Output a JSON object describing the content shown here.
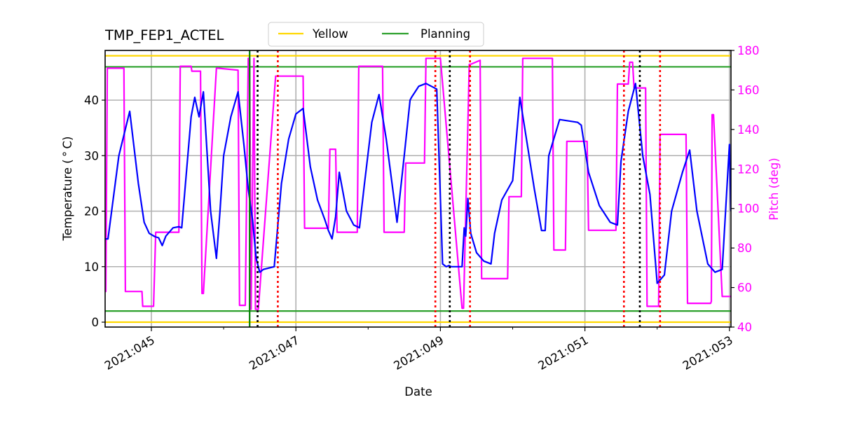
{
  "chart_data": {
    "type": "line",
    "title": "TMP_FEP1_ACTEL",
    "xlabel": "Date",
    "ylabel": "Temperature ($^\\circ$C)",
    "ylabel_display": "Temperature ( ° C)",
    "y2label": "Pitch (deg)",
    "xlim_day": [
      44.35,
      53.02
    ],
    "ylim": [
      -1,
      48.8
    ],
    "y2lim": [
      40,
      180
    ],
    "grid": true,
    "x_ticks": [
      {
        "day": 45,
        "label": "2021:045"
      },
      {
        "day": 47,
        "label": "2021:047"
      },
      {
        "day": 49,
        "label": "2021:049"
      },
      {
        "day": 51,
        "label": "2021:051"
      },
      {
        "day": 53,
        "label": "2021:053"
      }
    ],
    "x_minor_ticks_day": [
      46,
      48,
      50,
      52
    ],
    "y_ticks": [
      0,
      10,
      20,
      30,
      40
    ],
    "y2_ticks": [
      40,
      60,
      80,
      100,
      120,
      140,
      160,
      180
    ],
    "legend": {
      "position": "upper center, above axes",
      "entries": [
        {
          "label": "Yellow",
          "color": "#ffd700"
        },
        {
          "label": "Planning",
          "color": "#2ca02c"
        }
      ]
    },
    "limits": {
      "yellow": [
        0,
        48
      ],
      "planning": [
        2,
        46
      ]
    },
    "vlines": [
      {
        "day": 46.36,
        "color": "#008000",
        "style": "solid"
      },
      {
        "day": 46.47,
        "color": "#000000",
        "style": "dotted"
      },
      {
        "day": 46.75,
        "color": "#ff0000",
        "style": "dotted"
      },
      {
        "day": 48.93,
        "color": "#ff0000",
        "style": "dotted"
      },
      {
        "day": 49.13,
        "color": "#000000",
        "style": "dotted"
      },
      {
        "day": 49.41,
        "color": "#ff0000",
        "style": "dotted"
      },
      {
        "day": 51.54,
        "color": "#ff0000",
        "style": "dotted"
      },
      {
        "day": 51.76,
        "color": "#000000",
        "style": "dotted"
      },
      {
        "day": 52.04,
        "color": "#ff0000",
        "style": "dotted"
      }
    ],
    "series": [
      {
        "name": "Temperature",
        "axis": "left",
        "color": "#0000ff",
        "x": [
          44.35,
          44.4,
          44.55,
          44.7,
          44.82,
          44.9,
          44.97,
          45.05,
          45.1,
          45.15,
          45.2,
          45.3,
          45.38,
          45.42,
          45.55,
          45.6,
          45.66,
          45.72,
          45.82,
          45.9,
          45.95,
          46.0,
          46.1,
          46.2,
          46.28,
          46.34,
          46.4,
          46.45,
          46.5,
          46.55,
          46.7,
          46.8,
          46.9,
          47.0,
          47.1,
          47.2,
          47.3,
          47.4,
          47.45,
          47.5,
          47.55,
          47.6,
          47.7,
          47.8,
          47.88,
          47.95,
          48.05,
          48.15,
          48.25,
          48.35,
          48.4,
          48.5,
          48.58,
          48.6,
          48.7,
          48.8,
          48.95,
          49.03,
          49.08,
          49.12,
          49.15,
          49.3,
          49.33,
          49.35,
          49.38,
          49.42,
          49.5,
          49.6,
          49.7,
          49.75,
          49.85,
          50.0,
          50.1,
          50.3,
          50.4,
          50.45,
          50.5,
          50.65,
          50.9,
          50.95,
          51.05,
          51.2,
          51.35,
          51.45,
          51.5,
          51.6,
          51.7,
          51.8,
          51.9,
          52.0,
          52.1,
          52.2,
          52.35,
          52.45,
          52.55,
          52.7,
          52.8,
          52.9,
          53.0,
          53.02
        ],
        "y": [
          15,
          15,
          30,
          38,
          25,
          18,
          16,
          15.4,
          15.2,
          13.8,
          15.5,
          17,
          17.2,
          17,
          37,
          40.5,
          37,
          41.5,
          20,
          11.5,
          20,
          30,
          37,
          41.5,
          32,
          24,
          18.5,
          11.5,
          9,
          9.5,
          10,
          25,
          33,
          37.5,
          38.5,
          28,
          22,
          18.5,
          16.5,
          15,
          19,
          27,
          20,
          17.5,
          17,
          25,
          36,
          41,
          33,
          23,
          18,
          30,
          40,
          40.5,
          42.5,
          43,
          42,
          10.5,
          10,
          10.2,
          10,
          10,
          17,
          15.5,
          22.3,
          16,
          12.5,
          11,
          10.5,
          16,
          22,
          25.5,
          40.5,
          24,
          16.5,
          16.5,
          30,
          36.5,
          36,
          35.5,
          27,
          21,
          18,
          17.5,
          29,
          38,
          43,
          30,
          23,
          7,
          8.5,
          20,
          27,
          31,
          20,
          10.5,
          9,
          9.5,
          32,
          20
        ]
      },
      {
        "name": "Pitch",
        "axis": "right",
        "color": "#ff00ff",
        "x": [
          44.35,
          44.37,
          44.39,
          44.62,
          44.64,
          44.87,
          44.88,
          44.95,
          45.03,
          45.06,
          45.38,
          45.4,
          45.55,
          45.56,
          45.68,
          45.7,
          45.72,
          45.9,
          45.92,
          46.2,
          46.22,
          46.3,
          46.34,
          46.36,
          46.38,
          46.42,
          46.44,
          46.48,
          46.72,
          46.75,
          47.1,
          47.12,
          47.45,
          47.47,
          47.55,
          47.57,
          47.85,
          47.87,
          48.2,
          48.22,
          48.5,
          48.52,
          48.78,
          48.8,
          48.98,
          49.0,
          49.3,
          49.32,
          49.4,
          49.42,
          49.55,
          49.57,
          49.93,
          49.95,
          50.12,
          50.14,
          50.55,
          50.57,
          50.73,
          50.75,
          51.03,
          51.05,
          51.43,
          51.45,
          51.6,
          51.62,
          51.66,
          51.68,
          51.84,
          51.86,
          52.02,
          52.04,
          52.4,
          52.42,
          52.74,
          52.75,
          52.76,
          52.78,
          52.9,
          52.92,
          53.02
        ],
        "y": [
          58,
          58,
          171,
          171,
          58,
          58,
          50.5,
          50.5,
          50.5,
          88,
          88,
          172,
          172,
          169.5,
          169.5,
          57,
          57,
          171,
          171,
          170,
          51,
          51,
          176,
          176,
          49,
          176,
          49,
          49,
          167,
          167,
          167,
          90,
          90,
          130,
          130,
          88,
          88,
          172,
          172,
          88,
          88,
          123,
          123,
          176,
          176,
          176,
          49.5,
          49.5,
          173,
          173,
          175,
          64.5,
          64.5,
          106,
          106,
          176,
          176,
          79,
          79,
          134,
          134,
          89,
          89,
          163,
          163,
          174,
          174,
          161,
          161,
          50.5,
          50.5,
          137.5,
          137.5,
          52,
          52,
          53,
          147.5,
          147.5,
          55.5,
          55.5,
          55.5
        ]
      }
    ]
  }
}
